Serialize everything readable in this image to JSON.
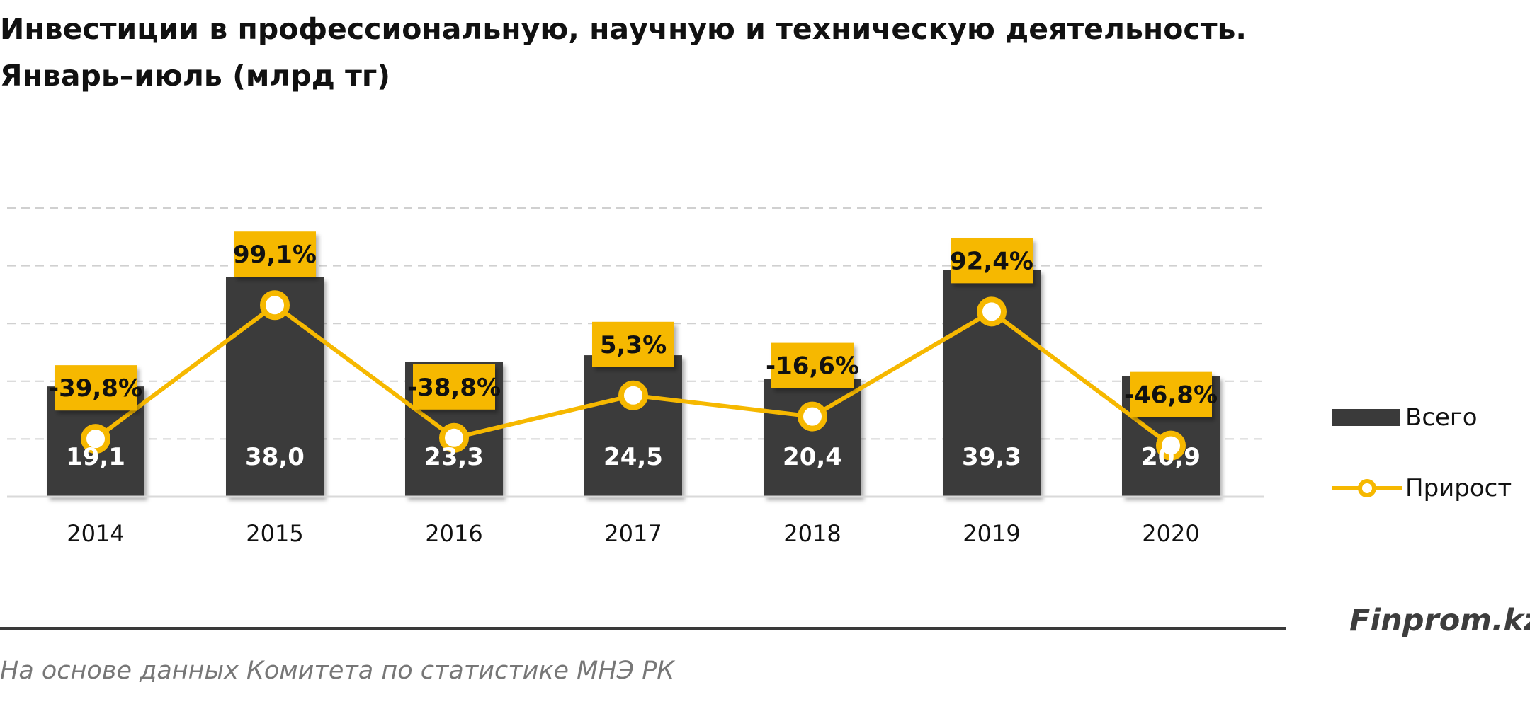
{
  "title": {
    "line1": "Инвестиции в профессиональную, научную и техническую деятельность.",
    "line2": "Январь–июль (млрд тг)"
  },
  "legend": {
    "bar_label": "Всего",
    "line_label": "Прирост"
  },
  "brand": "Finprom.kz",
  "source": "На основе данных  Комитета по статистике МНЭ РК",
  "colors": {
    "bar": "#3a3a3a",
    "line": "#f6b800",
    "label_box": "#f6b800",
    "grid": "#d0d0d0",
    "bar_label_text": "#ffffff"
  },
  "chart_data": {
    "type": "bar",
    "categories": [
      "2014",
      "2015",
      "2016",
      "2017",
      "2018",
      "2019",
      "2020"
    ],
    "series": [
      {
        "name": "Всего",
        "type": "bar",
        "values": [
          19.1,
          38.0,
          23.3,
          24.5,
          20.4,
          39.3,
          20.9
        ],
        "labels": [
          "19,1",
          "38,0",
          "23,3",
          "24,5",
          "20,4",
          "39,3",
          "20,9"
        ]
      },
      {
        "name": "Прирост",
        "type": "line",
        "values": [
          -39.8,
          99.1,
          -38.8,
          5.3,
          -16.6,
          92.4,
          -46.8
        ],
        "labels": [
          "-39,8%",
          "99,1%",
          "-38,8%",
          "5,3%",
          "-16,6%",
          "92,4%",
          "-46,8%"
        ]
      }
    ],
    "ylim": [
      0,
      50
    ],
    "y2lim": [
      -100,
      200
    ],
    "grid": true,
    "legend_position": "right"
  }
}
